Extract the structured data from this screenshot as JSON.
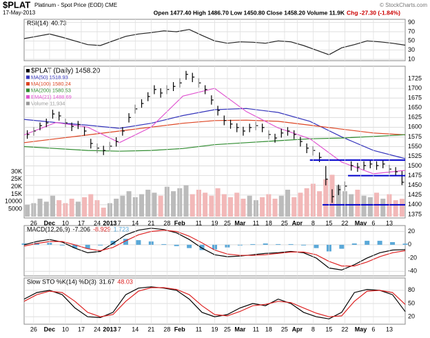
{
  "header": {
    "symbol": "$PLAT",
    "description": "Platinum - Spot Price (EOD) CME",
    "date": "17-May-2013",
    "copyright": "© StockCharts.com",
    "quote": "Open 1477.40 High 1486.70 Low 1450.80 Close 1458.20 Volume 11.9K",
    "change": "Chg -27.30 (-1.84%)"
  },
  "chart_data": [
    {
      "type": "line",
      "title": "RSI(14)",
      "xlim": [
        0,
        120
      ],
      "ylim": [
        7,
        97
      ],
      "yticks": [
        90,
        70,
        50,
        30,
        10
      ],
      "grid": true,
      "x": [
        0,
        4,
        8,
        12,
        16,
        20,
        24,
        28,
        32,
        36,
        40,
        44,
        48,
        52,
        56,
        60,
        64,
        68,
        72,
        76,
        80,
        84,
        88,
        92,
        96,
        100,
        104,
        108,
        112,
        116,
        120
      ],
      "series": [
        {
          "name": "RSI",
          "color": "#222222",
          "values": [
            55,
            60,
            65,
            58,
            50,
            42,
            40,
            50,
            60,
            65,
            68,
            72,
            70,
            75,
            62,
            50,
            45,
            48,
            47,
            45,
            50,
            48,
            40,
            30,
            20,
            35,
            42,
            50,
            48,
            45,
            40.73
          ]
        }
      ]
    },
    {
      "type": "ohlc",
      "xlim": [
        0,
        120
      ],
      "ylim": [
        1366,
        1757
      ],
      "yticks": [
        1375,
        1400,
        1425,
        1450,
        1475,
        1500,
        1525,
        1550,
        1575,
        1600,
        1625,
        1650,
        1675,
        1700,
        1725
      ],
      "y2lim": [
        -900,
        100600
      ],
      "y2ticks": [
        5000,
        10000,
        {
          "value": 15000,
          "label": "15K"
        },
        {
          "value": 20000,
          "label": "20K"
        },
        {
          "value": 25000,
          "label": "25K"
        },
        {
          "value": 30000,
          "label": "30K"
        }
      ],
      "grid": true,
      "xticks": [
        {
          "value": 3,
          "label": "26"
        },
        {
          "value": 8,
          "label": "Dec"
        },
        {
          "value": 13,
          "label": "10"
        },
        {
          "value": 18,
          "label": "17"
        },
        {
          "value": 23,
          "label": "24"
        },
        {
          "value": 27,
          "label": "2013"
        },
        {
          "value": 30,
          "label": "7"
        },
        {
          "value": 35,
          "label": "14"
        },
        {
          "value": 40,
          "label": "21"
        },
        {
          "value": 45,
          "label": "28"
        },
        {
          "value": 49,
          "label": "Feb"
        },
        {
          "value": 55,
          "label": "11"
        },
        {
          "value": 60,
          "label": "19"
        },
        {
          "value": 64,
          "label": "25"
        },
        {
          "value": 68,
          "label": "Mar"
        },
        {
          "value": 73,
          "label": "11"
        },
        {
          "value": 77,
          "label": "18"
        },
        {
          "value": 82,
          "label": "25"
        },
        {
          "value": 86,
          "label": "Apr"
        },
        {
          "value": 91,
          "label": "8"
        },
        {
          "value": 96,
          "label": "15"
        },
        {
          "value": 101,
          "label": "22"
        },
        {
          "value": 106,
          "label": "May"
        },
        {
          "value": 110,
          "label": "6"
        },
        {
          "value": 115,
          "label": "13"
        }
      ],
      "x": [
        1,
        3,
        5,
        7,
        9,
        11,
        13,
        15,
        17,
        19,
        21,
        23,
        25,
        27,
        29,
        31,
        33,
        35,
        37,
        39,
        41,
        43,
        45,
        47,
        49,
        51,
        53,
        55,
        57,
        59,
        61,
        63,
        65,
        67,
        69,
        71,
        73,
        75,
        77,
        79,
        81,
        83,
        85,
        87,
        89,
        91,
        93,
        95,
        97,
        99,
        101,
        103,
        105,
        107,
        109,
        111,
        113,
        115,
        117,
        119
      ],
      "price": {
        "name": "$PLAT (Daily) 1458.20",
        "color": "#000000",
        "high": [
          1592,
          1600,
          1612,
          1622,
          1645,
          1640,
          1622,
          1612,
          1616,
          1601,
          1570,
          1558,
          1552,
          1562,
          1574,
          1600,
          1636,
          1658,
          1672,
          1690,
          1708,
          1700,
          1708,
          1716,
          1726,
          1745,
          1740,
          1726,
          1708,
          1682,
          1655,
          1630,
          1619,
          1610,
          1601,
          1609,
          1614,
          1609,
          1592,
          1583,
          1596,
          1600,
          1592,
          1575,
          1558,
          1551,
          1535,
          1500,
          1440,
          1452,
          1460,
          1512,
          1508,
          1512,
          1516,
          1512,
          1516,
          1503,
          1497,
          1486.7
        ],
        "low": [
          1570,
          1578,
          1592,
          1600,
          1622,
          1617,
          1600,
          1590,
          1595,
          1578,
          1545,
          1533,
          1528,
          1540,
          1550,
          1578,
          1612,
          1635,
          1650,
          1667,
          1685,
          1676,
          1685,
          1693,
          1702,
          1722,
          1716,
          1702,
          1685,
          1658,
          1630,
          1605,
          1596,
          1587,
          1578,
          1587,
          1592,
          1587,
          1569,
          1560,
          1573,
          1578,
          1569,
          1550,
          1533,
          1527,
          1510,
          1450,
          1405,
          1425,
          1436,
          1488,
          1485,
          1490,
          1494,
          1490,
          1494,
          1480,
          1474,
          1450.8
        ],
        "close": [
          1581,
          1590,
          1604,
          1611,
          1634,
          1629,
          1611,
          1602,
          1607,
          1590,
          1558,
          1546,
          1540,
          1551,
          1563,
          1590,
          1625,
          1647,
          1661,
          1679,
          1697,
          1688,
          1697,
          1705,
          1714,
          1736,
          1729,
          1714,
          1697,
          1670,
          1643,
          1617,
          1608,
          1599,
          1590,
          1599,
          1604,
          1599,
          1581,
          1572,
          1585,
          1590,
          1581,
          1563,
          1546,
          1540,
          1522,
          1466,
          1421,
          1439,
          1448,
          1501,
          1497,
          1501,
          1505,
          1501,
          1505,
          1492,
          1485,
          1458.2
        ]
      },
      "series": [
        {
          "name": "MA(50) 1518.93",
          "color": "#3333bb",
          "x": [
            0,
            10,
            20,
            30,
            40,
            50,
            60,
            70,
            80,
            90,
            100,
            110,
            120
          ],
          "values": [
            1620,
            1612,
            1605,
            1597,
            1610,
            1630,
            1645,
            1648,
            1638,
            1615,
            1575,
            1540,
            1518.93
          ]
        },
        {
          "name": "MA(100) 1580.24",
          "color": "#dd4422",
          "x": [
            0,
            10,
            20,
            30,
            40,
            50,
            60,
            70,
            80,
            90,
            100,
            110,
            120
          ],
          "values": [
            1560,
            1570,
            1580,
            1590,
            1600,
            1610,
            1617,
            1618,
            1615,
            1605,
            1595,
            1585,
            1580.24
          ]
        },
        {
          "name": "MA(200) 1580.53",
          "color": "#2e8b2e",
          "x": [
            0,
            10,
            20,
            30,
            40,
            50,
            60,
            70,
            80,
            90,
            100,
            110,
            120
          ],
          "values": [
            1550,
            1545,
            1540,
            1538,
            1540,
            1545,
            1555,
            1560,
            1565,
            1570,
            1572,
            1576,
            1580.53
          ]
        },
        {
          "name": "EMA(21) 1488.69",
          "color": "#e055d0",
          "x": [
            0,
            10,
            20,
            30,
            40,
            50,
            60,
            70,
            80,
            90,
            100,
            110,
            120
          ],
          "values": [
            1580,
            1612,
            1600,
            1560,
            1600,
            1680,
            1700,
            1640,
            1598,
            1570,
            1510,
            1480,
            1488.69
          ]
        }
      ],
      "volume": {
        "name": "Volume 11,934",
        "color": "#bbbbbb",
        "down_color": "#f2b8b8",
        "axis": "y2",
        "values": [
          8000,
          9000,
          12000,
          10000,
          14000,
          11000,
          9000,
          12000,
          10000,
          13000,
          15000,
          11000,
          6000,
          9000,
          12000,
          14000,
          17000,
          13000,
          15000,
          18000,
          16000,
          14000,
          20000,
          17000,
          19000,
          21000,
          15000,
          18000,
          16000,
          14000,
          19000,
          15000,
          13000,
          16000,
          12000,
          14000,
          11000,
          13000,
          15000,
          12000,
          14000,
          18000,
          13000,
          16000,
          19000,
          22000,
          17000,
          25000,
          28000,
          21000,
          17000,
          15000,
          18000,
          14000,
          13000,
          16000,
          12000,
          15000,
          11000,
          11934
        ]
      },
      "levels": [
        {
          "value": 1515,
          "x": [
            90,
            120
          ],
          "color": "#0000cc"
        },
        {
          "value": 1475,
          "x": [
            102,
            120
          ],
          "color": "#0000cc"
        },
        {
          "value": 1400,
          "x": [
            94,
            120
          ],
          "color": "#0000cc"
        }
      ]
    },
    {
      "type": "line",
      "title": "MACD(12,26,9)",
      "xlim": [
        0,
        120
      ],
      "ylim": [
        -47,
        29
      ],
      "yticks": [
        20,
        0,
        -20,
        -40
      ],
      "grid": true,
      "x": [
        0,
        4,
        8,
        12,
        16,
        20,
        24,
        28,
        32,
        36,
        40,
        44,
        48,
        52,
        56,
        60,
        64,
        68,
        72,
        76,
        80,
        84,
        88,
        92,
        96,
        100,
        104,
        108,
        112,
        116,
        120
      ],
      "series": [
        {
          "name": "MACD",
          "color": "#000000",
          "values": [
            0,
            5,
            8,
            4,
            -5,
            -12,
            -10,
            2,
            15,
            22,
            25,
            23,
            18,
            8,
            -5,
            -15,
            -18,
            -17,
            -15,
            -13,
            -12,
            -10,
            -12,
            -20,
            -35,
            -38,
            -30,
            -20,
            -12,
            -8,
            -7.206
          ]
        },
        {
          "name": "Signal",
          "color": "#dd2222",
          "values": [
            -2,
            2,
            5,
            5,
            0,
            -6,
            -9,
            -4,
            6,
            15,
            20,
            22,
            20,
            13,
            3,
            -8,
            -14,
            -16,
            -16,
            -15,
            -13,
            -11,
            -11,
            -15,
            -25,
            -32,
            -32,
            -26,
            -18,
            -12,
            -8.929
          ]
        }
      ],
      "histogram": {
        "color": "#5aa8d8",
        "values": [
          2,
          3,
          3,
          -1,
          -5,
          -6,
          -1,
          6,
          9,
          7,
          5,
          1,
          -2,
          -5,
          -8,
          -7,
          -4,
          -1,
          1,
          2,
          1,
          1,
          -1,
          -5,
          -10,
          -6,
          2,
          6,
          6,
          4,
          1.723
        ]
      }
    },
    {
      "type": "line",
      "title": "Slow STO %K(14) %D(3)",
      "xlim": [
        0,
        120
      ],
      "ylim": [
        3,
        108
      ],
      "yticks": [
        80,
        50,
        20
      ],
      "grid": true,
      "x": [
        0,
        4,
        8,
        12,
        16,
        20,
        24,
        28,
        32,
        36,
        40,
        44,
        48,
        52,
        56,
        60,
        64,
        68,
        72,
        76,
        80,
        84,
        88,
        92,
        96,
        100,
        104,
        108,
        112,
        116,
        120
      ],
      "xticks": [
        {
          "value": 3,
          "label": "26"
        },
        {
          "value": 8,
          "label": "Dec"
        },
        {
          "value": 13,
          "label": "10"
        },
        {
          "value": 18,
          "label": "17"
        },
        {
          "value": 23,
          "label": "24"
        },
        {
          "value": 27,
          "label": "2013"
        },
        {
          "value": 30,
          "label": "7"
        },
        {
          "value": 35,
          "label": "14"
        },
        {
          "value": 40,
          "label": "21"
        },
        {
          "value": 45,
          "label": "28"
        },
        {
          "value": 49,
          "label": "Feb"
        },
        {
          "value": 55,
          "label": "11"
        },
        {
          "value": 60,
          "label": "19"
        },
        {
          "value": 64,
          "label": "25"
        },
        {
          "value": 68,
          "label": "Mar"
        },
        {
          "value": 73,
          "label": "11"
        },
        {
          "value": 77,
          "label": "18"
        },
        {
          "value": 82,
          "label": "25"
        },
        {
          "value": 86,
          "label": "Apr"
        },
        {
          "value": 91,
          "label": "8"
        },
        {
          "value": 96,
          "label": "15"
        },
        {
          "value": 101,
          "label": "22"
        },
        {
          "value": 106,
          "label": "May"
        },
        {
          "value": 110,
          "label": "6"
        },
        {
          "value": 115,
          "label": "13"
        }
      ],
      "series": [
        {
          "name": "%K",
          "color": "#000000",
          "values": [
            60,
            75,
            80,
            70,
            40,
            20,
            18,
            30,
            70,
            85,
            88,
            85,
            80,
            60,
            30,
            20,
            25,
            40,
            50,
            45,
            60,
            50,
            30,
            20,
            15,
            30,
            75,
            82,
            80,
            70,
            31.67
          ]
        },
        {
          "name": "%D",
          "color": "#dd2222",
          "values": [
            55,
            70,
            78,
            75,
            55,
            30,
            20,
            25,
            55,
            78,
            86,
            86,
            82,
            70,
            45,
            25,
            22,
            32,
            45,
            48,
            55,
            52,
            40,
            28,
            20,
            22,
            55,
            78,
            80,
            75,
            48.03
          ]
        }
      ]
    }
  ]
}
